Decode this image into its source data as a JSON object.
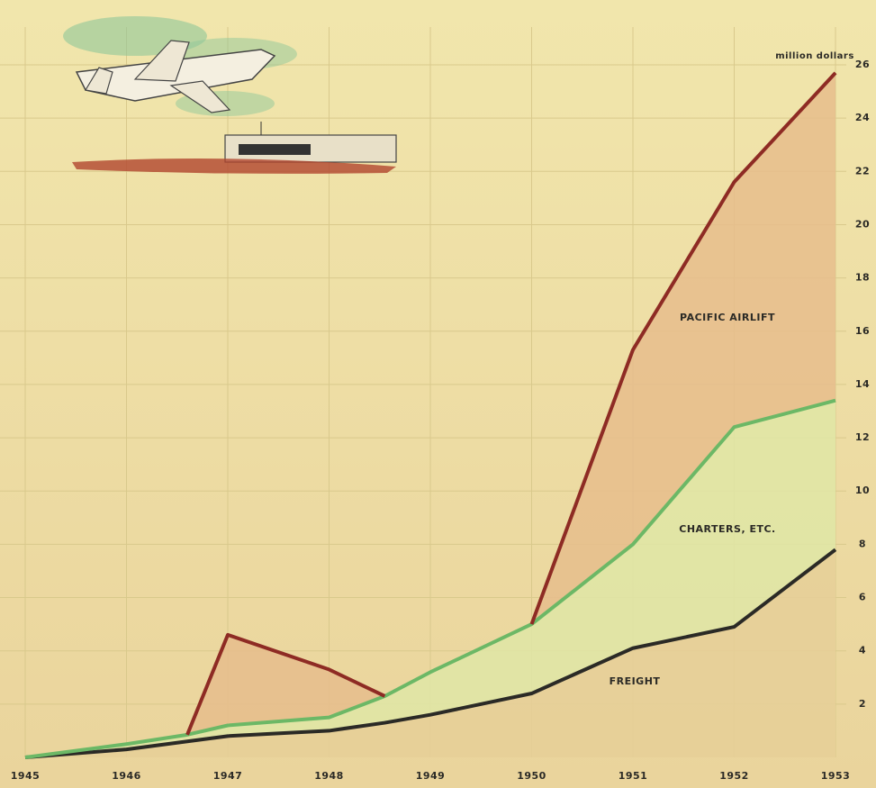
{
  "chart_data": {
    "type": "stacked-area",
    "y_label": "million dollars",
    "x": [
      1945,
      1946,
      1946.6,
      1947,
      1948,
      1948.55,
      1949,
      1950,
      1951,
      1952,
      1953
    ],
    "series": [
      {
        "name": "FREIGHT",
        "color": "#2b2a26",
        "fill": "#e6cf98",
        "values": [
          0,
          0.3,
          0.6,
          0.8,
          1.0,
          1.3,
          1.6,
          2.4,
          4.1,
          4.9,
          7.8
        ]
      },
      {
        "name": "CHARTERS, ETC.",
        "color": "#6cb866",
        "fill": "#dfe6a6",
        "values": [
          0,
          0.2,
          0.25,
          0.4,
          0.5,
          1.0,
          1.6,
          2.6,
          3.9,
          7.5,
          5.6
        ]
      },
      {
        "name": "PACIFIC AIRLIFT",
        "color": "#8e2b24",
        "fill": "#e6bd8c",
        "values": [
          null,
          null,
          0,
          3.4,
          1.8,
          0,
          null,
          0,
          7.3,
          9.2,
          12.3
        ]
      }
    ],
    "xlim": [
      1945,
      1953
    ],
    "ylim": [
      0,
      26
    ],
    "xticks": [
      1945,
      1946,
      1947,
      1948,
      1949,
      1950,
      1951,
      1952,
      1953
    ],
    "yticks": [
      2,
      4,
      6,
      8,
      10,
      12,
      14,
      16,
      18,
      20,
      22,
      24,
      26
    ],
    "grid": true
  }
}
